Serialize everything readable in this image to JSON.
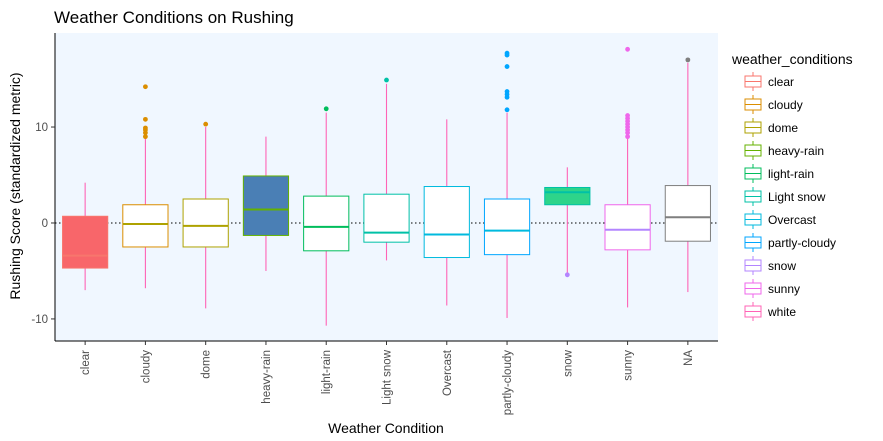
{
  "chart_data": {
    "type": "boxplot",
    "title": "Weather Conditions on Rushing",
    "xlabel": "Weather Condition",
    "ylabel": "Rushing Score (standardized metric)",
    "ylim": [
      -12.3,
      19.8
    ],
    "yticks": [
      -10,
      0,
      10
    ],
    "reference_line": 0,
    "panel_background": "#f0f7ff",
    "legend": {
      "title": "weather_conditions",
      "position": "right",
      "entries": [
        {
          "label": "clear",
          "color": "#F8766D"
        },
        {
          "label": "cloudy",
          "color": "#DB8E00"
        },
        {
          "label": "dome",
          "color": "#AEA200"
        },
        {
          "label": "heavy-rain",
          "color": "#64B200"
        },
        {
          "label": "light-rain",
          "color": "#00BD5C"
        },
        {
          "label": "Light snow",
          "color": "#00C1A7"
        },
        {
          "label": "Overcast",
          "color": "#00BADE"
        },
        {
          "label": "partly-cloudy",
          "color": "#00A6FF"
        },
        {
          "label": "snow",
          "color": "#B385FF"
        },
        {
          "label": "sunny",
          "color": "#EF67EB"
        },
        {
          "label": "white",
          "color": "#FF63B6"
        }
      ]
    },
    "categories": [
      "clear",
      "cloudy",
      "dome",
      "heavy-rain",
      "light-rain",
      "Light snow",
      "Overcast",
      "partly-cloudy",
      "snow",
      "sunny",
      "NA"
    ],
    "series": [
      {
        "category": "clear",
        "q1": -4.7,
        "median": -3.4,
        "q3": 0.7,
        "min": -7.0,
        "max": 4.2,
        "fill": "#F8666A",
        "stroke": "#F8766D",
        "median_color": "#F8766D",
        "whisker_color": "#FF63B6",
        "outlier_color": "#F8766D",
        "outliers": []
      },
      {
        "category": "cloudy",
        "q1": -2.5,
        "median": -0.1,
        "q3": 1.9,
        "min": -6.8,
        "max": 8.9,
        "fill": "none",
        "stroke": "#DB8E00",
        "median_color": "#AEA200",
        "whisker_color": "#FF63B6",
        "outlier_color": "#DB8E00",
        "outliers": [
          9.0,
          9.4,
          9.7,
          9.9,
          10.8,
          14.2
        ]
      },
      {
        "category": "dome",
        "q1": -2.5,
        "median": -0.3,
        "q3": 2.5,
        "min": -8.9,
        "max": 10.0,
        "fill": "none",
        "stroke": "#AEA200",
        "median_color": "#AEA200",
        "whisker_color": "#FF63B6",
        "outlier_color": "#DB8E00",
        "outliers": [
          10.3
        ]
      },
      {
        "category": "heavy-rain",
        "q1": -1.3,
        "median": 1.4,
        "q3": 4.9,
        "min": -5.0,
        "max": 9.0,
        "fill": "#4a7fb5",
        "stroke": "#64B200",
        "median_color": "#64B200",
        "whisker_color": "#FF63B6",
        "outlier_color": "#64B200",
        "outliers": []
      },
      {
        "category": "light-rain",
        "q1": -2.9,
        "median": -0.4,
        "q3": 2.8,
        "min": -10.7,
        "max": 11.5,
        "fill": "none",
        "stroke": "#00BD5C",
        "median_color": "#00BD5C",
        "whisker_color": "#FF63B6",
        "outlier_color": "#00BD5C",
        "outliers": [
          11.9
        ]
      },
      {
        "category": "Light snow",
        "q1": -2.0,
        "median": -1.0,
        "q3": 3.0,
        "min": -3.9,
        "max": 14.5,
        "fill": "none",
        "stroke": "#00C1A7",
        "median_color": "#00C1A7",
        "whisker_color": "#FF63B6",
        "outlier_color": "#00C1A7",
        "outliers": [
          14.9
        ]
      },
      {
        "category": "Overcast",
        "q1": -3.6,
        "median": -1.2,
        "q3": 3.8,
        "min": -8.6,
        "max": 10.8,
        "fill": "none",
        "stroke": "#00BADE",
        "median_color": "#00BADE",
        "whisker_color": "#FF63B6",
        "outlier_color": "#00BADE",
        "outliers": []
      },
      {
        "category": "partly-cloudy",
        "q1": -3.3,
        "median": -0.8,
        "q3": 2.5,
        "min": -9.9,
        "max": 11.5,
        "fill": "none",
        "stroke": "#00A6FF",
        "median_color": "#00BADE",
        "whisker_color": "#FF63B6",
        "outlier_color": "#00A6FF",
        "outliers": [
          11.8,
          13.1,
          13.4,
          13.7,
          16.3,
          17.5,
          17.7
        ]
      },
      {
        "category": "snow",
        "q1": 1.9,
        "median": 3.2,
        "q3": 3.7,
        "min": -5.4,
        "max": 5.8,
        "fill": "#2ed48a",
        "stroke": "#00C1A7",
        "median_color": "#00C1A7",
        "whisker_color": "#FF63B6",
        "outlier_color": "#B385FF",
        "outliers": [
          -5.4
        ]
      },
      {
        "category": "sunny",
        "q1": -2.8,
        "median": -0.7,
        "q3": 1.9,
        "min": -8.8,
        "max": 8.8,
        "fill": "none",
        "stroke": "#EF67EB",
        "median_color": "#B385FF",
        "whisker_color": "#FF63B6",
        "outlier_color": "#EF67EB",
        "outliers": [
          9.0,
          9.4,
          9.7,
          10.0,
          10.3,
          10.6,
          10.9,
          11.2,
          18.1
        ]
      },
      {
        "category": "NA",
        "q1": -1.9,
        "median": 0.6,
        "q3": 3.9,
        "min": -7.2,
        "max": 16.7,
        "fill": "none",
        "stroke": "#7f7f7f",
        "median_color": "#7f7f7f",
        "whisker_color": "#FF63B6",
        "outlier_color": "#7f7f7f",
        "outliers": [
          17.0
        ]
      }
    ]
  }
}
